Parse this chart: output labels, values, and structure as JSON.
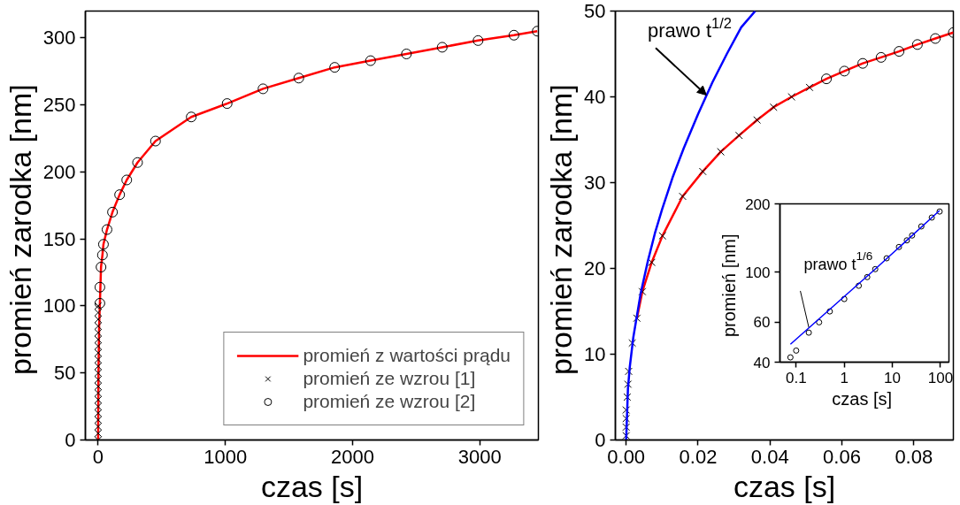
{
  "chart_data": [
    {
      "type": "line",
      "xlabel": "czas [s]",
      "ylabel": "promień zarodka  [nm]",
      "xlim": [
        -100,
        3460
      ],
      "ylim": [
        0,
        320
      ],
      "xticks": [
        0,
        1000,
        2000,
        3000
      ],
      "yticks": [
        0,
        50,
        100,
        150,
        200,
        250,
        300
      ],
      "legend": "bottom right",
      "series": [
        {
          "name": "promień z wartości prądu",
          "color": "#ff0000",
          "marker": "none",
          "x": [
            0,
            3,
            8,
            14,
            23,
            34,
            42,
            70,
            113,
            169,
            225,
            310,
            451,
            732,
            1014,
            1296,
            1577,
            1859,
            2141,
            2423,
            2704,
            2986,
            3268,
            3451
          ],
          "values": [
            0,
            50,
            85,
            102,
            129,
            138,
            146,
            157,
            170,
            183,
            194,
            207,
            223,
            241,
            251,
            262,
            270,
            278,
            283,
            288,
            293,
            298,
            302,
            305
          ]
        },
        {
          "name": "promień ze wzrou [1]",
          "type": "scatter",
          "color": "#000000",
          "marker": "cross",
          "x": [
            0,
            0,
            0,
            0,
            0,
            0,
            0,
            0,
            0,
            0,
            0,
            0,
            0,
            0,
            0,
            0,
            0,
            0,
            0,
            0,
            0
          ],
          "values": [
            0,
            5,
            10,
            15,
            20,
            25,
            30,
            35,
            40,
            45,
            50,
            55,
            60,
            65,
            70,
            75,
            80,
            85,
            90,
            95,
            100
          ]
        },
        {
          "name": "promień ze wzrou [2]",
          "type": "scatter",
          "color": "#000000",
          "marker": "circle",
          "x": [
            14,
            14,
            23,
            34,
            42,
            70,
            113,
            169,
            225,
            310,
            451,
            732,
            1014,
            1296,
            1577,
            1859,
            2141,
            2423,
            2704,
            2986,
            3268,
            3451
          ],
          "values": [
            102,
            114,
            129,
            138,
            146,
            157,
            170,
            183,
            194,
            207,
            223,
            241,
            251,
            262,
            270,
            278,
            283,
            288,
            293,
            298,
            302,
            305
          ]
        }
      ]
    },
    {
      "type": "line",
      "xlabel": "czas [s]",
      "ylabel": "promień zarodka  [nm]",
      "xlim": [
        -0.003,
        0.091
      ],
      "ylim": [
        0,
        50
      ],
      "xticks": [
        {
          "value": 0,
          "label": "0.00"
        },
        0.02,
        0.04,
        0.06,
        0.08
      ],
      "yticks": [
        0,
        10,
        20,
        30,
        40,
        50
      ],
      "annotations": [
        {
          "text": "prawo t$^{1/2}$",
          "x": 0.0223,
          "y": 40.2
        }
      ],
      "series": [
        {
          "color": "#ff0000",
          "marker": "none",
          "x": [
            0.003,
            0.0045,
            0.0071,
            0.0101,
            0.0157,
            0.0213,
            0.0263,
            0.0314,
            0.0364,
            0.041,
            0.046,
            0.051,
            0.0557,
            0.0607,
            0.0658,
            0.0709,
            0.0759,
            0.081,
            0.086,
            0.091
          ],
          "values": [
            14.2,
            17.3,
            20.7,
            23.8,
            28.4,
            31.3,
            33.6,
            35.5,
            37.3,
            38.8,
            40,
            41.1,
            42.1,
            43,
            43.9,
            44.6,
            45.3,
            46.1,
            46.8,
            47.5
          ]
        },
        {
          "type": "scatter",
          "color": "#000000",
          "marker": "cross",
          "x": [
            0,
            0,
            0,
            0,
            0.0003,
            0.0005,
            0.0007,
            0.0017,
            0.003,
            0.0045,
            0.0071,
            0.0101,
            0.0157,
            0.0213,
            0.0263,
            0.0314,
            0.0364,
            0.041,
            0.046,
            0.051
          ],
          "values": [
            0.5,
            1.5,
            2.5,
            3.5,
            5,
            6.5,
            8,
            11.3,
            14.2,
            17.3,
            20.7,
            23.8,
            28.4,
            31.3,
            33.6,
            35.5,
            37.3,
            38.8,
            40,
            41.1
          ]
        },
        {
          "type": "scatter",
          "color": "#000000",
          "marker": "circle",
          "x": [
            0.0557,
            0.0607,
            0.0658,
            0.0709,
            0.0759,
            0.081,
            0.086,
            0.091
          ],
          "values": [
            42.1,
            43,
            43.9,
            44.6,
            45.3,
            46.1,
            46.8,
            47.5
          ]
        },
        {
          "color": "#0000ff",
          "marker": "none",
          "x": [
            0,
            0.0005,
            0.001,
            0.002,
            0.004,
            0.006,
            0.008,
            0.01,
            0.013,
            0.016,
            0.02,
            0.024,
            0.028,
            0.032,
            0.0359
          ],
          "values": [
            0,
            6,
            8.5,
            12,
            17,
            20.8,
            24.1,
            26.9,
            30.7,
            34,
            38,
            41.7,
            45,
            48.1,
            50
          ]
        }
      ]
    },
    {
      "type": "line",
      "xlabel": "czas  [s]",
      "ylabel": "promień  [nm]",
      "log": "xy",
      "xlim": [
        0.046,
        150
      ],
      "ylim": [
        40,
        200
      ],
      "xticks": [
        0.1,
        1,
        10,
        100
      ],
      "yticks": [
        40,
        60,
        100,
        200
      ],
      "annotations": [
        {
          "text": "prawo t$^{1/6}$",
          "x": 0.183,
          "y": 57
        }
      ],
      "series": [
        {
          "type": "scatter",
          "color": "#000000",
          "marker": "circle",
          "x": [
            0.076,
            0.1,
            0.183,
            0.3,
            0.5,
            1,
            2,
            3,
            4.4,
            7.6,
            13.7,
            20,
            25.7,
            40,
            66,
            96
          ],
          "values": [
            42,
            45,
            54,
            60,
            67,
            76,
            87,
            95,
            103,
            115,
            129,
            138,
            145,
            159,
            174,
            185
          ]
        },
        {
          "color": "#0000ff",
          "marker": "none",
          "x": [
            0.076,
            1,
            4.4,
            96
          ],
          "values": [
            48,
            78,
            103,
            187
          ]
        }
      ]
    }
  ]
}
